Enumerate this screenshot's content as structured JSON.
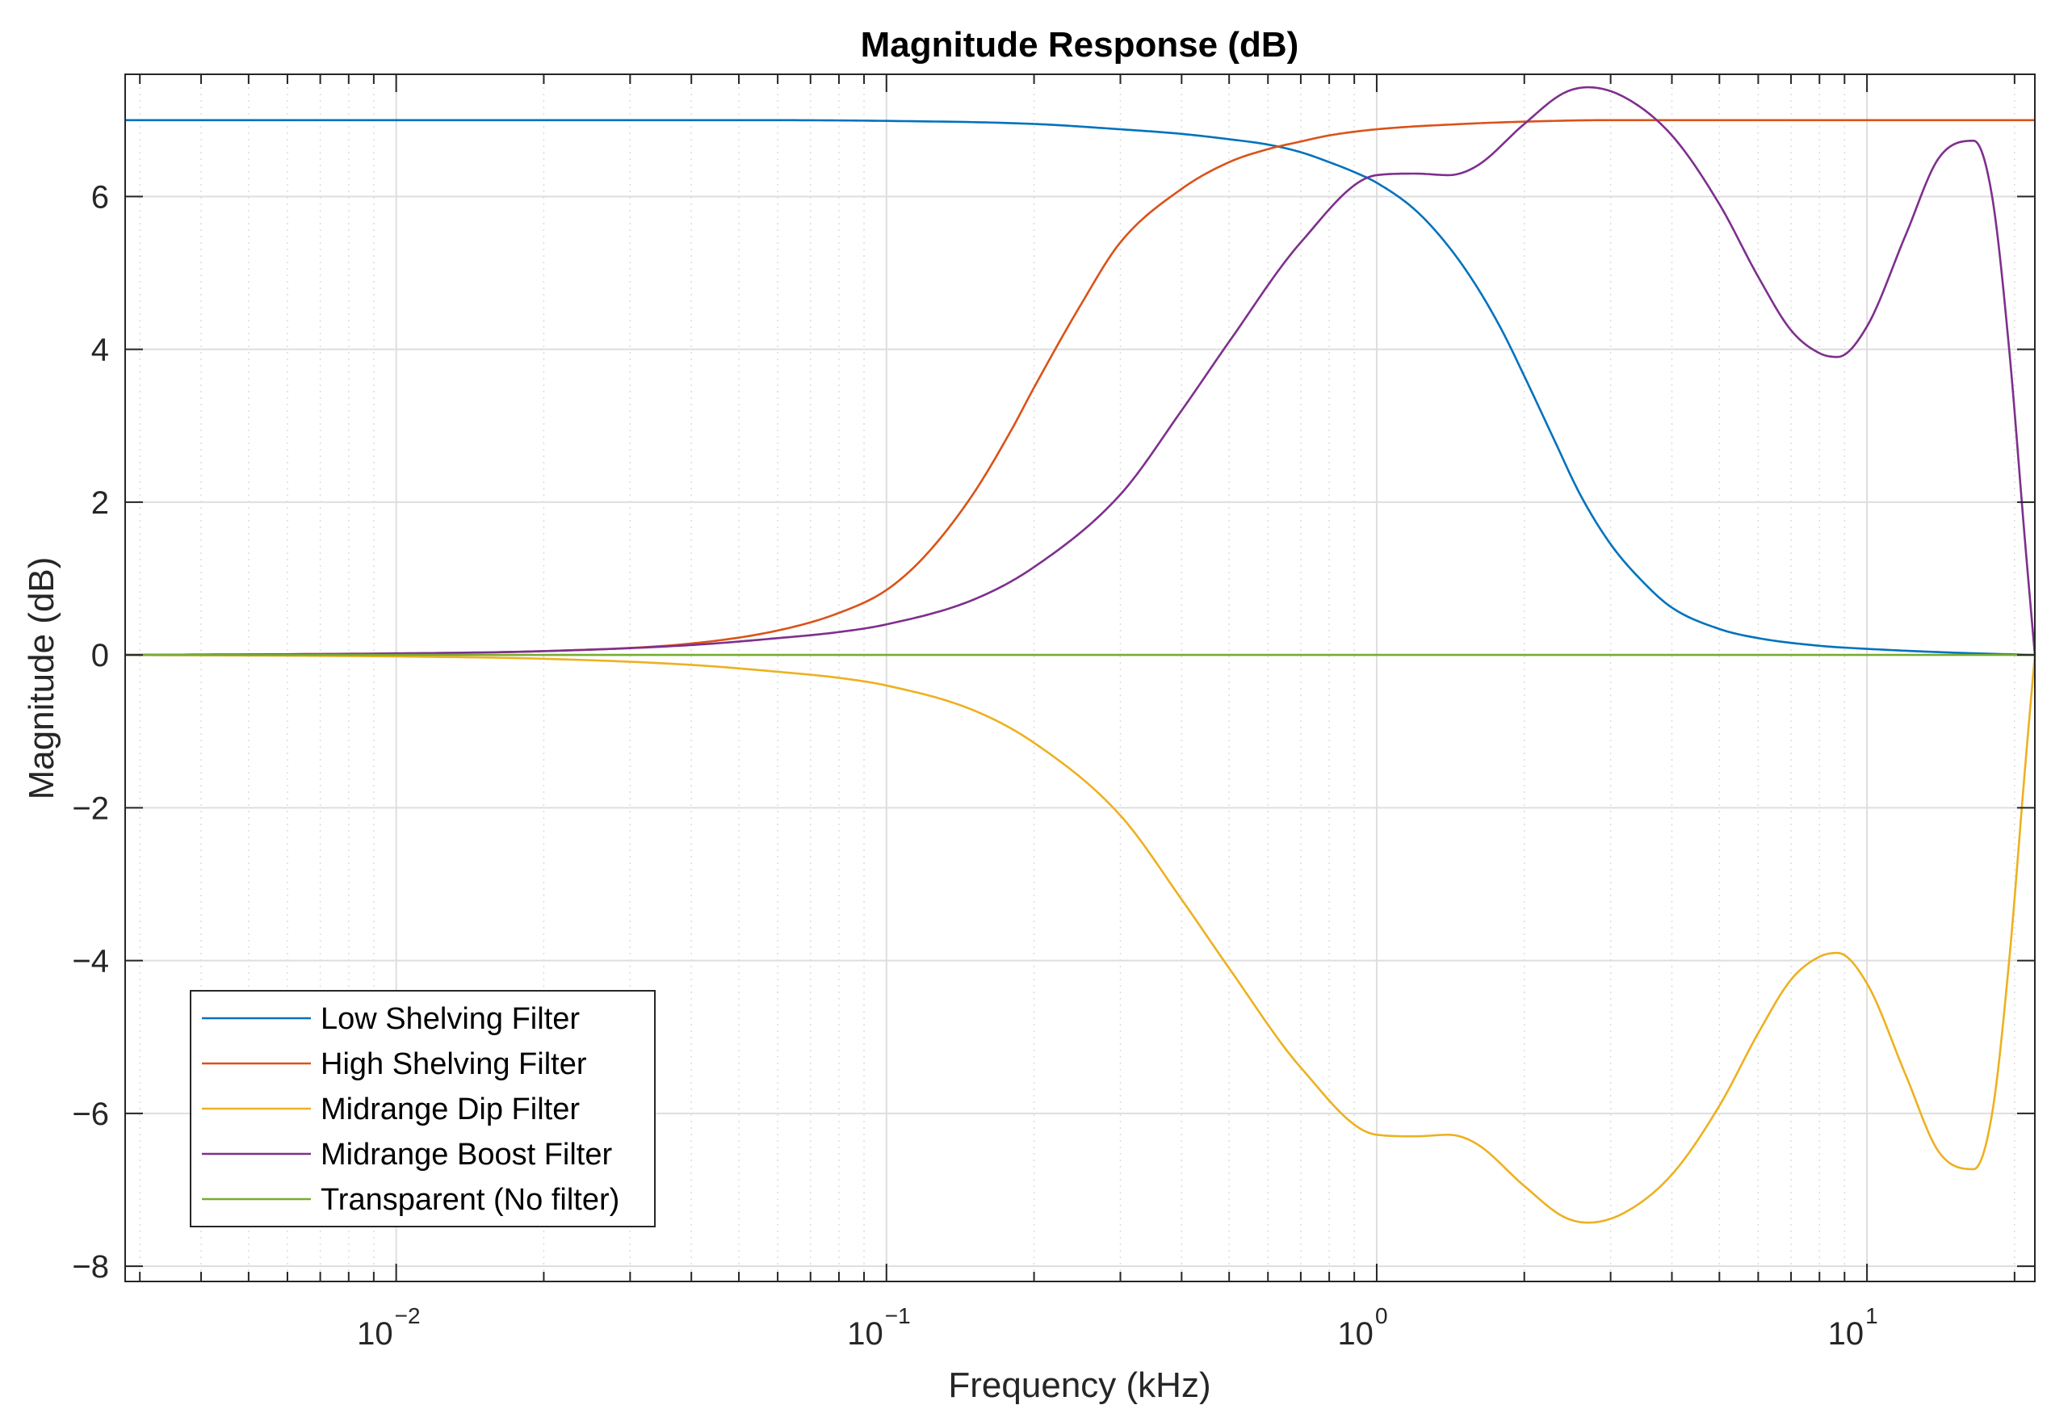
{
  "chart_data": {
    "type": "line",
    "title": "Magnitude Response (dB)",
    "xlabel": "Frequency (kHz)",
    "ylabel": "Magnitude (dB)",
    "xscale": "log",
    "xlim": [
      0.0028,
      22
    ],
    "ylim": [
      -8.2,
      7.6
    ],
    "x_ticks": [
      {
        "value": 0.01,
        "base": "10",
        "exp": "−2"
      },
      {
        "value": 0.1,
        "base": "10",
        "exp": "−1"
      },
      {
        "value": 1,
        "base": "10",
        "exp": "0"
      },
      {
        "value": 10,
        "base": "10",
        "exp": "1"
      }
    ],
    "y_ticks": [
      {
        "value": 6,
        "label": "6"
      },
      {
        "value": 4,
        "label": "4"
      },
      {
        "value": 2,
        "label": "2"
      },
      {
        "value": 0,
        "label": "0"
      },
      {
        "value": -2,
        "label": "−2"
      },
      {
        "value": -4,
        "label": "−4"
      },
      {
        "value": -6,
        "label": "−6"
      },
      {
        "value": -8,
        "label": "−8"
      }
    ],
    "grid": true,
    "legend_position": "bottom-left",
    "series": [
      {
        "name": "Low Shelving Filter",
        "color": "#0072BD",
        "x": [
          0.0028,
          0.01,
          0.05,
          0.1,
          0.2,
          0.3,
          0.4,
          0.5,
          0.6,
          0.7,
          0.8,
          0.9,
          1.0,
          1.2,
          1.4,
          1.6,
          1.8,
          2.0,
          2.3,
          2.6,
          3.0,
          3.5,
          4.0,
          5.0,
          6.0,
          8.0,
          10.0,
          15.0,
          22.0
        ],
        "y": [
          7.0,
          7.0,
          7.0,
          6.99,
          6.95,
          6.88,
          6.82,
          6.75,
          6.68,
          6.58,
          6.45,
          6.32,
          6.18,
          5.82,
          5.35,
          4.82,
          4.25,
          3.65,
          2.82,
          2.1,
          1.45,
          0.95,
          0.62,
          0.34,
          0.22,
          0.12,
          0.08,
          0.03,
          0.0
        ]
      },
      {
        "name": "High Shelving Filter",
        "color": "#D95319",
        "x": [
          0.0028,
          0.01,
          0.02,
          0.04,
          0.06,
          0.08,
          0.1,
          0.12,
          0.15,
          0.18,
          0.2,
          0.25,
          0.3,
          0.4,
          0.5,
          0.6,
          0.7,
          0.8,
          1.0,
          1.5,
          2.0,
          3.0,
          5.0,
          10.0,
          22.0
        ],
        "y": [
          0.0,
          0.02,
          0.05,
          0.15,
          0.32,
          0.55,
          0.85,
          1.3,
          2.1,
          2.95,
          3.5,
          4.6,
          5.4,
          6.1,
          6.45,
          6.62,
          6.72,
          6.8,
          6.88,
          6.95,
          6.98,
          7.0,
          7.0,
          7.0,
          7.0
        ]
      },
      {
        "name": "Midrange Dip Filter",
        "color": "#EDB120",
        "x": [
          0.0028,
          0.01,
          0.02,
          0.04,
          0.06,
          0.08,
          0.1,
          0.15,
          0.2,
          0.3,
          0.4,
          0.5,
          0.7,
          1.0,
          1.2,
          1.4,
          1.6,
          2.0,
          2.4,
          2.7,
          3.2,
          4.0,
          5.0,
          6.0,
          7.0,
          8.0,
          8.7,
          10.0,
          12.0,
          14.0,
          16.5,
          18.0,
          19.5,
          21.0,
          22.0
        ],
        "y": [
          0.0,
          -0.02,
          -0.05,
          -0.13,
          -0.22,
          -0.3,
          -0.4,
          -0.72,
          -1.15,
          -2.1,
          -3.2,
          -4.1,
          -5.4,
          -6.28,
          -6.3,
          -6.28,
          -6.4,
          -6.95,
          -7.35,
          -7.43,
          -7.3,
          -6.8,
          -5.9,
          -4.95,
          -4.25,
          -3.95,
          -3.9,
          -4.3,
          -5.5,
          -6.5,
          -6.73,
          -6.0,
          -4.0,
          -1.5,
          0.0
        ]
      },
      {
        "name": "Midrange Boost Filter",
        "color": "#7E2F8E",
        "x": [
          0.0028,
          0.01,
          0.02,
          0.04,
          0.06,
          0.08,
          0.1,
          0.15,
          0.2,
          0.3,
          0.4,
          0.5,
          0.7,
          1.0,
          1.2,
          1.4,
          1.6,
          2.0,
          2.4,
          2.7,
          3.2,
          4.0,
          5.0,
          6.0,
          7.0,
          8.0,
          8.7,
          10.0,
          12.0,
          14.0,
          16.5,
          18.0,
          19.5,
          21.0,
          22.0
        ],
        "y": [
          0.0,
          0.02,
          0.05,
          0.13,
          0.22,
          0.3,
          0.4,
          0.72,
          1.15,
          2.1,
          3.2,
          4.1,
          5.4,
          6.28,
          6.3,
          6.28,
          6.4,
          6.95,
          7.35,
          7.43,
          7.3,
          6.8,
          5.9,
          4.95,
          4.25,
          3.95,
          3.9,
          4.3,
          5.5,
          6.5,
          6.73,
          6.0,
          4.0,
          1.5,
          0.0
        ]
      },
      {
        "name": "Transparent (No filter)",
        "color": "#77AC30",
        "x": [
          0.0028,
          22.0
        ],
        "y": [
          0.0,
          0.0
        ]
      }
    ]
  }
}
